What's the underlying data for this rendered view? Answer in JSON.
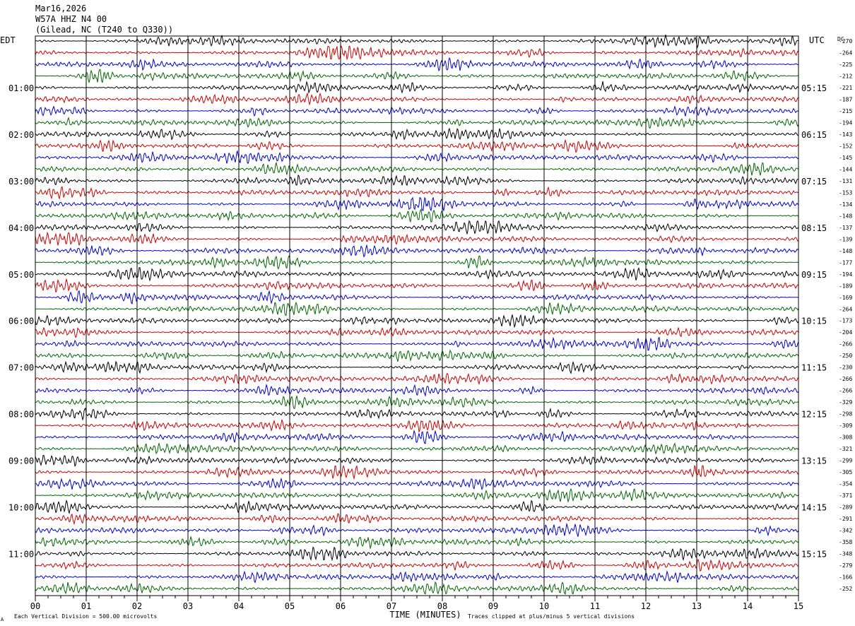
{
  "header": {
    "date": "Mar16,2026",
    "station": "W57A HHZ N4 00",
    "location": "(Gilead, NC (T240 to Q330))"
  },
  "left_timezone": "EDT",
  "right_timezone": "UTC",
  "dc_label": "DC",
  "footer": {
    "vertical_division": "Each Vertical Division =  500.00 microvolts",
    "clip_note": "Traces clipped at plus/minus 5 vertical divisions",
    "corner_mark": "A"
  },
  "colors": {
    "trace_cycle": [
      "#000000",
      "#cc0000",
      "#0000cc",
      "#006600"
    ],
    "grid": "#000000"
  },
  "chart_data": {
    "type": "line",
    "title": "",
    "xlabel": "TIME (MINUTES)",
    "x_ticks": [
      "00",
      "01",
      "02",
      "03",
      "04",
      "05",
      "06",
      "07",
      "08",
      "09",
      "10",
      "11",
      "12",
      "13",
      "14",
      "15"
    ],
    "xlim": [
      0,
      15
    ],
    "rows_per_hour": 4,
    "left_hour_labels": [
      "01:00",
      "02:00",
      "03:00",
      "04:00",
      "05:00",
      "06:00",
      "07:00",
      "08:00",
      "09:00",
      "10:00",
      "11:00"
    ],
    "right_hour_labels": [
      "05:15",
      "06:15",
      "07:15",
      "08:15",
      "09:15",
      "10:15",
      "11:15",
      "12:15",
      "13:15",
      "14:15",
      "15:15"
    ],
    "dc_offsets": [
      -270,
      -264,
      -225,
      -212,
      -221,
      -187,
      -215,
      -194,
      -143,
      -152,
      -145,
      -144,
      -131,
      -153,
      -134,
      -148,
      -137,
      -139,
      -148,
      -177,
      -194,
      -189,
      -169,
      -264,
      -173,
      -204,
      -266,
      -250,
      -230,
      -266,
      -266,
      -329,
      -298,
      -309,
      -308,
      -321,
      -299,
      -305,
      -354,
      -371,
      -289,
      -291,
      -342,
      -358,
      -348,
      -279,
      -166,
      -252
    ]
  }
}
